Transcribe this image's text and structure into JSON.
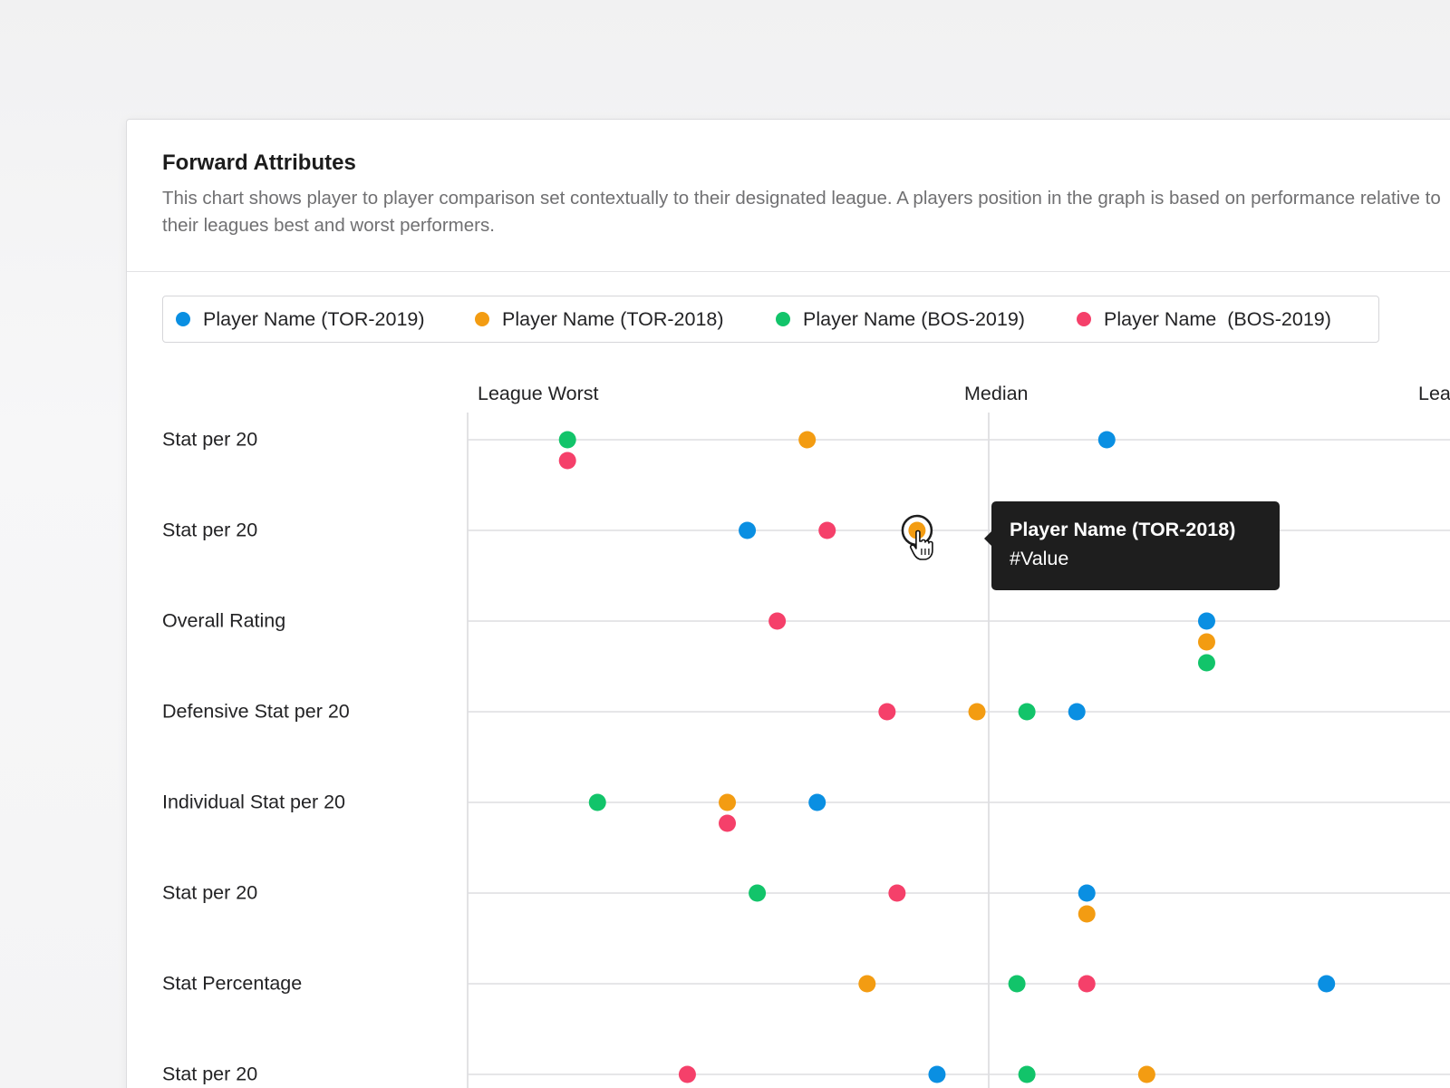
{
  "panel": {
    "title": "Forward Attributes",
    "description": "This chart shows player to player comparison set contextually to their designated league. A players position in the graph is based on performance relative to their leagues best and worst performers."
  },
  "legend": [
    {
      "label": "Player Name (TOR-2019)",
      "color": "#0a8fe2"
    },
    {
      "label": "Player Name (TOR-2018)",
      "color": "#f39c12"
    },
    {
      "label": "Player Name (BOS-2019)",
      "color": "#12c46a"
    },
    {
      "label": "Player Name  (BOS-2019)",
      "color": "#f5406a"
    }
  ],
  "tooltip": {
    "title": "Player Name (TOR-2018)",
    "value": "#Value",
    "series": "Player Name (TOR-2018)",
    "category": "Stat per 20"
  },
  "chart_data": {
    "type": "scatter",
    "title": "Forward Attributes",
    "x_scale_labels": [
      "League Worst",
      "Median",
      "League Best"
    ],
    "x_scale_labels_visible": [
      "League Worst",
      "Median",
      "Lea"
    ],
    "xlim": [
      0,
      100
    ],
    "grid": true,
    "legend_position": "top",
    "categories": [
      "Stat per 20",
      "Stat per 20",
      "Overall Rating",
      "Defensive Stat per 20",
      "Individual Stat per 20",
      "Stat per 20",
      "Stat Percentage",
      "Stat per 20"
    ],
    "series": [
      {
        "name": "Player Name (TOR-2019)",
        "color": "#0a8fe2",
        "values": [
          64,
          28,
          74,
          61,
          35,
          62,
          86,
          47
        ]
      },
      {
        "name": "Player Name (TOR-2018)",
        "color": "#f39c12",
        "values": [
          34,
          45,
          74,
          51,
          26,
          62,
          40,
          68
        ]
      },
      {
        "name": "Player Name (BOS-2019)",
        "color": "#12c46a",
        "values": [
          10,
          null,
          74,
          56,
          13,
          29,
          55,
          56
        ]
      },
      {
        "name": "Player Name  (BOS-2019)",
        "color": "#f5406a",
        "values": [
          10,
          36,
          31,
          42,
          26,
          43,
          62,
          22
        ]
      }
    ]
  }
}
